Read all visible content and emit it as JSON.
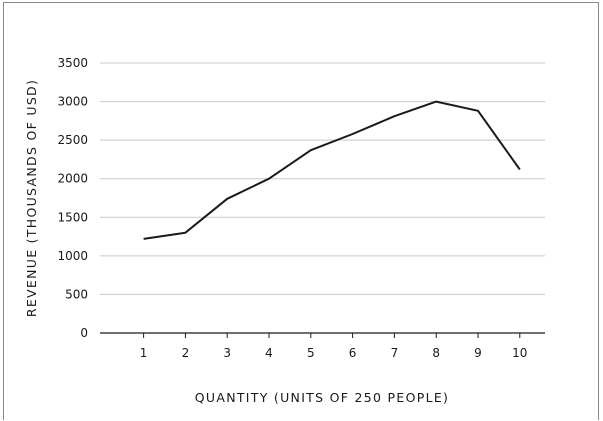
{
  "chart_data": {
    "type": "line",
    "title": "",
    "xlabel": "QUANTITY (UNITS OF 250 PEOPLE)",
    "ylabel": "REVENUE (THOUSANDS OF USD)",
    "x": [
      1,
      2,
      3,
      4,
      5,
      6,
      7,
      8,
      9,
      10
    ],
    "series": [
      {
        "values": [
          1220,
          1300,
          1740,
          2000,
          2370,
          2580,
          2810,
          3000,
          2880,
          2120
        ]
      }
    ],
    "xlim": [
      0,
      10.5
    ],
    "ylim": [
      0,
      3500
    ],
    "yticks": [
      0,
      500,
      1000,
      1500,
      2000,
      2500,
      3000,
      3500
    ],
    "xticks": [
      1,
      2,
      3,
      4,
      5,
      6,
      7,
      8,
      9,
      10
    ],
    "grid": "horizontal",
    "legend": "none",
    "colors": {
      "line": "#1a1a1a",
      "grid": "#c8c8c8",
      "axis": "#1a1a1a"
    }
  }
}
